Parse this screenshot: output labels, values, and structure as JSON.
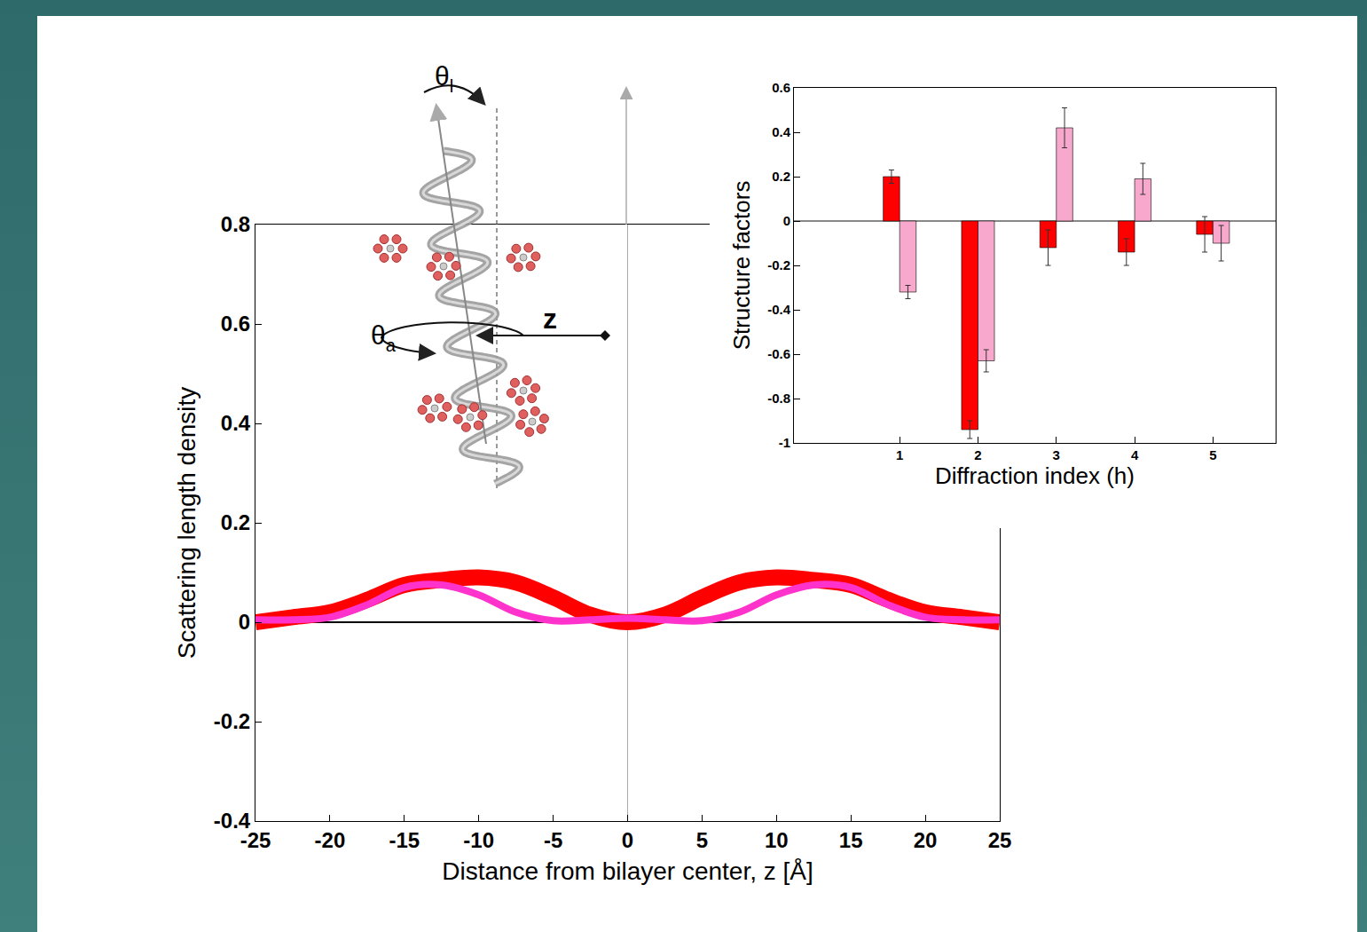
{
  "chart_data": [
    {
      "type": "line",
      "x_label": "Distance from bilayer center, z [Å]",
      "y_label": "Scattering length density",
      "annotations": [
        "θl",
        "θa",
        "z"
      ],
      "x": [
        -25,
        -22.5,
        -20,
        -17.5,
        -15,
        -12.5,
        -10,
        -7.5,
        -5,
        -2.5,
        0,
        2.5,
        5,
        7.5,
        10,
        12.5,
        15,
        17.5,
        20,
        22.5,
        25
      ],
      "series": [
        {
          "color": "#ff0000",
          "values": [
            0.0,
            0.01,
            0.02,
            0.045,
            0.075,
            0.085,
            0.09,
            0.08,
            0.05,
            0.015,
            0.0,
            0.015,
            0.05,
            0.08,
            0.09,
            0.085,
            0.075,
            0.045,
            0.02,
            0.01,
            0.0
          ]
        },
        {
          "color": "#ff33cc",
          "values": [
            0.005,
            0.005,
            0.01,
            0.035,
            0.07,
            0.075,
            0.055,
            0.02,
            0.003,
            0.005,
            0.008,
            0.005,
            0.003,
            0.02,
            0.055,
            0.075,
            0.07,
            0.035,
            0.01,
            0.005,
            0.005
          ]
        }
      ],
      "xlim": [
        -25,
        25
      ],
      "xticks": [
        -25,
        -20,
        -15,
        -10,
        -5,
        0,
        5,
        10,
        15,
        20,
        25
      ],
      "ylim": [
        -0.4,
        0.8
      ],
      "yticks": [
        -0.4,
        -0.2,
        0,
        0.2,
        0.4,
        0.6,
        0.8
      ],
      "grid": false
    },
    {
      "type": "bar",
      "x_label": "Diffraction index (h)",
      "y_label": "Structure factors",
      "x": [
        1,
        2,
        3,
        4,
        5
      ],
      "series": [
        {
          "color": "#ff0000",
          "values": [
            0.2,
            -0.94,
            -0.12,
            -0.14,
            -0.06
          ],
          "errors": [
            0.03,
            0.04,
            0.08,
            0.06,
            0.08
          ]
        },
        {
          "color": "#f7a8cc",
          "values": [
            -0.32,
            -0.63,
            0.42,
            0.19,
            -0.1
          ],
          "errors": [
            0.03,
            0.05,
            0.09,
            0.07,
            0.08
          ]
        }
      ],
      "xlim": [
        -0.35,
        5.8
      ],
      "xticks": [
        1,
        2,
        3,
        4,
        5
      ],
      "ylim": [
        -1,
        0.6
      ],
      "yticks": [
        -1,
        -0.8,
        -0.6,
        -0.4,
        -0.2,
        0,
        0.2,
        0.4,
        0.6
      ],
      "grid": false
    }
  ]
}
